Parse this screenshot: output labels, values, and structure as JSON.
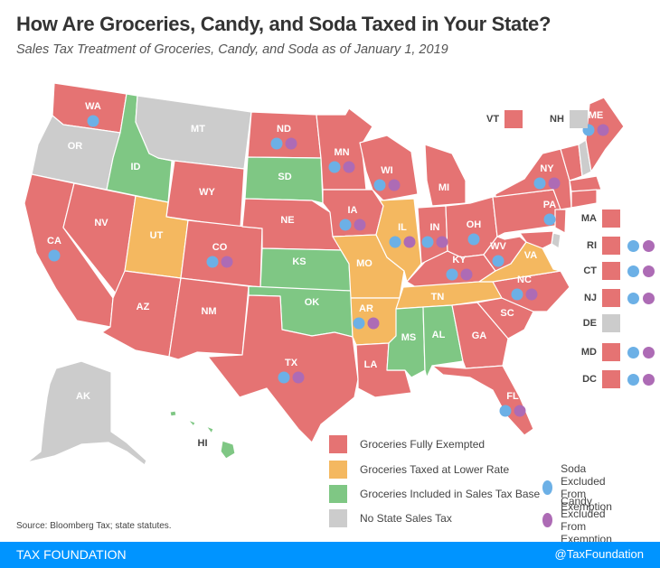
{
  "header": {
    "title": "How Are Groceries, Candy, and Soda Taxed in Your State?",
    "subtitle": "Sales Tax Treatment of Groceries, Candy, and Soda as of January 1, 2019"
  },
  "colors": {
    "fully_exempted": "#e57373",
    "lower_rate": "#f4b860",
    "included": "#7fc784",
    "no_sales_tax": "#cccccc",
    "soda": "#6cb0e6",
    "candy": "#ad6bb5",
    "footer_bar": "#0094ff"
  },
  "legend": {
    "categories": [
      {
        "key": "fully_exempted",
        "label": "Groceries Fully Exempted",
        "color": "#e57373"
      },
      {
        "key": "lower_rate",
        "label": "Groceries Taxed at Lower Rate",
        "color": "#f4b860"
      },
      {
        "key": "included",
        "label": "Groceries Included in Sales Tax Base",
        "color": "#7fc784"
      },
      {
        "key": "no_sales_tax",
        "label": "No State Sales Tax",
        "color": "#cccccc"
      }
    ],
    "markers": [
      {
        "key": "soda",
        "label_line1": "Soda Excluded",
        "label_line2": "From Exemption",
        "color": "#6cb0e6"
      },
      {
        "key": "candy",
        "label_line1": "Candy Excluded",
        "label_line2": "From Exemption",
        "color": "#ad6bb5"
      }
    ]
  },
  "small_states": {
    "top": [
      {
        "abbr": "VT",
        "category": "fully_exempted",
        "soda": false,
        "candy": false
      },
      {
        "abbr": "NH",
        "category": "no_sales_tax",
        "soda": false,
        "candy": false
      }
    ],
    "side": [
      {
        "abbr": "MA",
        "category": "fully_exempted",
        "soda": false,
        "candy": false
      },
      {
        "abbr": "RI",
        "category": "fully_exempted",
        "soda": true,
        "candy": true
      },
      {
        "abbr": "CT",
        "category": "fully_exempted",
        "soda": true,
        "candy": true
      },
      {
        "abbr": "NJ",
        "category": "fully_exempted",
        "soda": true,
        "candy": true
      },
      {
        "abbr": "DE",
        "category": "no_sales_tax",
        "soda": false,
        "candy": false
      },
      {
        "abbr": "MD",
        "category": "fully_exempted",
        "soda": true,
        "candy": true
      },
      {
        "abbr": "DC",
        "category": "fully_exempted",
        "soda": true,
        "candy": true
      }
    ]
  },
  "states": [
    {
      "abbr": "WA",
      "category": "fully_exempted",
      "soda": true,
      "candy": false
    },
    {
      "abbr": "OR",
      "category": "no_sales_tax",
      "soda": false,
      "candy": false
    },
    {
      "abbr": "CA",
      "category": "fully_exempted",
      "soda": true,
      "candy": false
    },
    {
      "abbr": "ID",
      "category": "included",
      "soda": false,
      "candy": false
    },
    {
      "abbr": "NV",
      "category": "fully_exempted",
      "soda": false,
      "candy": false
    },
    {
      "abbr": "MT",
      "category": "no_sales_tax",
      "soda": false,
      "candy": false
    },
    {
      "abbr": "WY",
      "category": "fully_exempted",
      "soda": false,
      "candy": false
    },
    {
      "abbr": "UT",
      "category": "lower_rate",
      "soda": false,
      "candy": false
    },
    {
      "abbr": "AZ",
      "category": "fully_exempted",
      "soda": false,
      "candy": false
    },
    {
      "abbr": "CO",
      "category": "fully_exempted",
      "soda": true,
      "candy": true
    },
    {
      "abbr": "NM",
      "category": "fully_exempted",
      "soda": false,
      "candy": false
    },
    {
      "abbr": "ND",
      "category": "fully_exempted",
      "soda": true,
      "candy": true
    },
    {
      "abbr": "SD",
      "category": "included",
      "soda": false,
      "candy": false
    },
    {
      "abbr": "NE",
      "category": "fully_exempted",
      "soda": false,
      "candy": false
    },
    {
      "abbr": "KS",
      "category": "included",
      "soda": false,
      "candy": false
    },
    {
      "abbr": "OK",
      "category": "included",
      "soda": false,
      "candy": false
    },
    {
      "abbr": "TX",
      "category": "fully_exempted",
      "soda": true,
      "candy": true
    },
    {
      "abbr": "MN",
      "category": "fully_exempted",
      "soda": true,
      "candy": true
    },
    {
      "abbr": "IA",
      "category": "fully_exempted",
      "soda": true,
      "candy": true
    },
    {
      "abbr": "MO",
      "category": "lower_rate",
      "soda": false,
      "candy": false
    },
    {
      "abbr": "AR",
      "category": "lower_rate",
      "soda": true,
      "candy": true
    },
    {
      "abbr": "LA",
      "category": "fully_exempted",
      "soda": false,
      "candy": false
    },
    {
      "abbr": "WI",
      "category": "fully_exempted",
      "soda": true,
      "candy": true
    },
    {
      "abbr": "IL",
      "category": "lower_rate",
      "soda": true,
      "candy": true
    },
    {
      "abbr": "MI",
      "category": "fully_exempted",
      "soda": false,
      "candy": false
    },
    {
      "abbr": "IN",
      "category": "fully_exempted",
      "soda": true,
      "candy": true
    },
    {
      "abbr": "OH",
      "category": "fully_exempted",
      "soda": true,
      "candy": false
    },
    {
      "abbr": "KY",
      "category": "fully_exempted",
      "soda": true,
      "candy": true
    },
    {
      "abbr": "TN",
      "category": "lower_rate",
      "soda": false,
      "candy": false
    },
    {
      "abbr": "MS",
      "category": "included",
      "soda": false,
      "candy": false
    },
    {
      "abbr": "AL",
      "category": "included",
      "soda": false,
      "candy": false
    },
    {
      "abbr": "GA",
      "category": "fully_exempted",
      "soda": false,
      "candy": false
    },
    {
      "abbr": "FL",
      "category": "fully_exempted",
      "soda": true,
      "candy": true
    },
    {
      "abbr": "SC",
      "category": "fully_exempted",
      "soda": false,
      "candy": false
    },
    {
      "abbr": "NC",
      "category": "fully_exempted",
      "soda": true,
      "candy": true
    },
    {
      "abbr": "VA",
      "category": "lower_rate",
      "soda": false,
      "candy": false
    },
    {
      "abbr": "WV",
      "category": "fully_exempted",
      "soda": true,
      "candy": false
    },
    {
      "abbr": "PA",
      "category": "fully_exempted",
      "soda": true,
      "candy": false
    },
    {
      "abbr": "NY",
      "category": "fully_exempted",
      "soda": true,
      "candy": true
    },
    {
      "abbr": "ME",
      "category": "fully_exempted",
      "soda": true,
      "candy": true
    },
    {
      "abbr": "AK",
      "category": "no_sales_tax",
      "soda": false,
      "candy": false
    },
    {
      "abbr": "HI",
      "category": "included",
      "soda": false,
      "candy": false
    }
  ],
  "source": "Source: Bloomberg Tax; state statutes.",
  "footer": {
    "left": "TAX FOUNDATION",
    "right": "@TaxFoundation"
  }
}
